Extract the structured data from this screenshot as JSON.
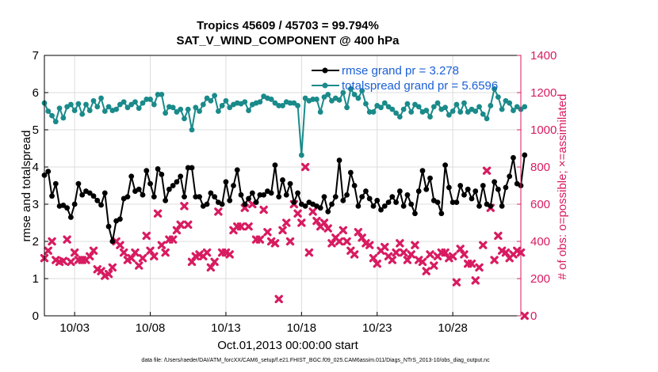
{
  "chart_data": {
    "type": "line",
    "title_line1": "Tropics 45609 / 45703 = 99.794%",
    "title_line2": "SAT_V_WIND_COMPONENT @ 400 hPa",
    "xlabel": "Oct.01,2013 00:00:00 start",
    "ylabel_left": "rmse and totalspread",
    "ylabel_right": "# of obs: o=possible; ×=assimilated",
    "footnote": "data file: /Users/raeder/DAI/ATM_forcXX/CAM6_setup/f.e21.FHIST_BGC.f09_025.CAM6assim.011/Diags_NTrS_2013-10/obs_diag_output.nc",
    "x_day_range": [
      1.0,
      32.5
    ],
    "ylim_left": [
      0,
      7
    ],
    "ylim_right": [
      0,
      1400
    ],
    "left_ticks": [
      "0",
      "1",
      "2",
      "3",
      "4",
      "5",
      "6",
      "7"
    ],
    "right_ticks": [
      "0",
      "200",
      "400",
      "600",
      "800",
      "1000",
      "1200",
      "1400"
    ],
    "x_ticks": [
      {
        "day": 3,
        "label": "10/03"
      },
      {
        "day": 8,
        "label": "10/08"
      },
      {
        "day": 13,
        "label": "10/13"
      },
      {
        "day": 18,
        "label": "10/18"
      },
      {
        "day": 23,
        "label": "10/23"
      },
      {
        "day": 28,
        "label": "10/28"
      }
    ],
    "step_days": 0.25,
    "series": [
      {
        "name": "rmse",
        "legend": "rmse grand pr = 3.278",
        "color": "#000000",
        "axis": "left",
        "values": [
          3.78,
          3.88,
          3.22,
          3.55,
          2.95,
          2.97,
          2.9,
          2.65,
          3.0,
          3.55,
          3.25,
          3.35,
          3.3,
          3.22,
          3.1,
          2.98,
          3.3,
          2.4,
          2.0,
          2.55,
          2.6,
          3.15,
          3.2,
          3.75,
          3.35,
          3.4,
          3.25,
          3.9,
          3.55,
          3.2,
          3.95,
          3.8,
          3.1,
          3.4,
          3.5,
          3.6,
          3.75,
          3.2,
          3.98,
          3.98,
          3.2,
          3.2,
          2.95,
          3.0,
          3.3,
          3.2,
          3.05,
          3.0,
          3.6,
          3.1,
          3.5,
          3.92,
          3.25,
          3.0,
          3.15,
          3.3,
          3.05,
          3.25,
          3.25,
          3.35,
          3.3,
          4.05,
          3.2,
          3.65,
          3.25,
          3.55,
          3.05,
          3.3,
          3.0,
          2.95,
          3.05,
          3.0,
          2.95,
          2.9,
          3.2,
          2.8,
          3.0,
          3.2,
          4.18,
          3.1,
          3.25,
          3.85,
          3.5,
          2.95,
          3.2,
          3.35,
          3.15,
          2.95,
          3.1,
          2.85,
          2.95,
          3.05,
          3.2,
          3.05,
          3.35,
          2.95,
          3.25,
          3.0,
          2.75,
          3.35,
          3.9,
          3.4,
          3.7,
          3.1,
          3.05,
          2.75,
          4.05,
          3.45,
          3.05,
          3.05,
          3.5,
          3.25,
          3.4,
          3.15,
          3.35,
          2.95,
          3.5,
          3.0,
          2.95,
          3.6,
          3.4,
          2.95,
          3.45,
          3.75,
          4.25,
          3.55,
          3.5,
          4.32
        ]
      },
      {
        "name": "totalspread",
        "legend": "totalspread grand pr = 5.6596",
        "color": "#1a8a8a",
        "axis": "left",
        "values": [
          5.72,
          5.5,
          5.38,
          5.22,
          5.58,
          5.32,
          5.62,
          5.68,
          5.52,
          5.7,
          5.42,
          5.68,
          5.52,
          5.78,
          5.62,
          5.85,
          5.5,
          5.62,
          5.52,
          5.55,
          5.68,
          5.75,
          5.6,
          5.68,
          5.75,
          5.58,
          5.72,
          5.82,
          5.82,
          5.68,
          5.95,
          5.95,
          5.45,
          5.62,
          5.6,
          5.48,
          5.55,
          5.3,
          5.55,
          5.0,
          5.6,
          5.5,
          5.68,
          5.85,
          5.78,
          5.92,
          5.5,
          5.65,
          5.78,
          5.6,
          5.68,
          5.72,
          5.7,
          5.75,
          5.52,
          5.68,
          5.72,
          5.75,
          5.9,
          5.85,
          5.82,
          5.72,
          5.65,
          5.65,
          5.75,
          5.72,
          5.72,
          5.65,
          4.32,
          5.85,
          5.78,
          5.82,
          5.82,
          5.48,
          5.88,
          5.95,
          5.78,
          5.85,
          5.8,
          6.0,
          5.6,
          6.1,
          5.95,
          5.85,
          6.05,
          5.7,
          5.48,
          5.48,
          5.65,
          5.6,
          5.72,
          5.62,
          5.55,
          5.45,
          5.35,
          5.55,
          5.7,
          5.48,
          5.68,
          5.62,
          5.48,
          5.52,
          5.35,
          5.62,
          5.72,
          5.55,
          5.6,
          5.4,
          5.5,
          5.68,
          5.48,
          5.72,
          5.48,
          5.55,
          5.5,
          5.62,
          5.42,
          5.3,
          5.65,
          6.1,
          5.88,
          5.55,
          5.78,
          5.72,
          5.52,
          5.62,
          5.55,
          5.62
        ]
      },
      {
        "name": "assimilated",
        "color": "#d81b60",
        "axis": "right",
        "values": [
          310,
          350,
          400,
          300,
          290,
          295,
          410,
          290,
          340,
          300,
          300,
          300,
          320,
          350,
          250,
          240,
          215,
          225,
          260,
          400,
          380,
          340,
          300,
          310,
          340,
          270,
          310,
          430,
          350,
          320,
          550,
          380,
          340,
          410,
          410,
          460,
          490,
          590,
          490,
          290,
          320,
          330,
          320,
          340,
          260,
          290,
          560,
          340,
          340,
          330,
          460,
          480,
          480,
          580,
          480,
          600,
          410,
          410,
          570,
          450,
          400,
          390,
          90,
          460,
          500,
          400,
          600,
          550,
          500,
          800,
          340,
          560,
          510,
          480,
          500,
          470,
          390,
          420,
          400,
          460,
          400,
          350,
          330,
          450,
          420,
          390,
          380,
          310,
          280,
          350,
          370,
          320,
          300,
          340,
          390,
          340,
          300,
          330,
          380,
          300,
          290,
          240,
          330,
          270,
          320,
          340,
          340,
          310,
          320,
          180,
          360,
          330,
          280,
          280,
          190,
          260,
          380,
          780,
          580,
          300,
          430,
          350,
          340,
          310,
          330,
          350,
          340,
          0
        ]
      }
    ]
  }
}
